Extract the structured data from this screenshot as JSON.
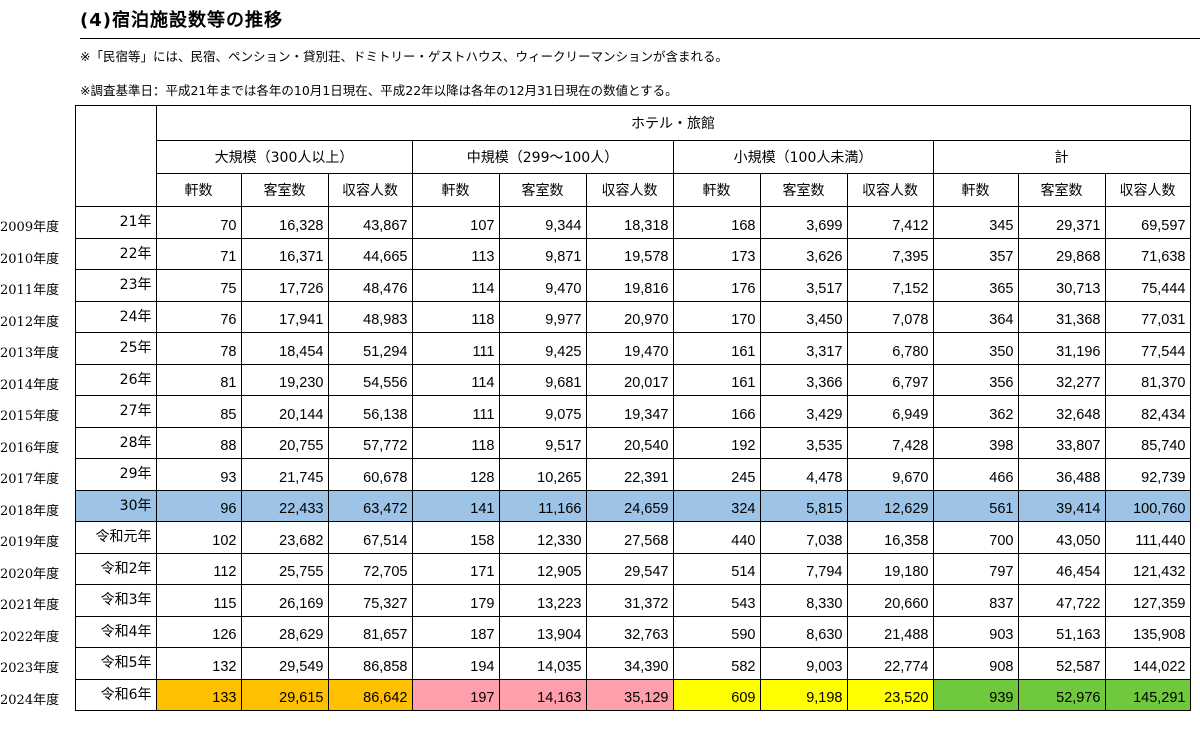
{
  "title": "(4)宿泊施設数等の推移",
  "notes": [
    "※「民宿等」には、民宿、ペンション・貸別荘、ドミトリー・ゲストハウス、ウィークリーマンションが含まれる。",
    "※調査基準日：平成21年までは各年の10月1日現在、平成22年以降は各年の12月31日現在の数値とする。"
  ],
  "header": {
    "group": "ホテル・旅館",
    "categories": [
      "大規模（300人以上）",
      "中規模（299～100人）",
      "小規模（100人未満）",
      "計"
    ],
    "columns": [
      "軒数",
      "客室数",
      "収容人数"
    ]
  },
  "highlight_colors": {
    "row_2018": "#9dc3e6",
    "latest_large": "#ffc000",
    "latest_medium": "#ff9fac",
    "latest_small": "#ffff00",
    "latest_total": "#70c83c"
  },
  "rows": [
    {
      "fiscal_year": "2009年度",
      "era": "21年",
      "values": [
        "70",
        "16,328",
        "43,867",
        "107",
        "9,344",
        "18,318",
        "168",
        "3,699",
        "7,412",
        "345",
        "29,371",
        "69,597"
      ]
    },
    {
      "fiscal_year": "2010年度",
      "era": "22年",
      "values": [
        "71",
        "16,371",
        "44,665",
        "113",
        "9,871",
        "19,578",
        "173",
        "3,626",
        "7,395",
        "357",
        "29,868",
        "71,638"
      ]
    },
    {
      "fiscal_year": "2011年度",
      "era": "23年",
      "values": [
        "75",
        "17,726",
        "48,476",
        "114",
        "9,470",
        "19,816",
        "176",
        "3,517",
        "7,152",
        "365",
        "30,713",
        "75,444"
      ]
    },
    {
      "fiscal_year": "2012年度",
      "era": "24年",
      "values": [
        "76",
        "17,941",
        "48,983",
        "118",
        "9,977",
        "20,970",
        "170",
        "3,450",
        "7,078",
        "364",
        "31,368",
        "77,031"
      ]
    },
    {
      "fiscal_year": "2013年度",
      "era": "25年",
      "values": [
        "78",
        "18,454",
        "51,294",
        "111",
        "9,425",
        "19,470",
        "161",
        "3,317",
        "6,780",
        "350",
        "31,196",
        "77,544"
      ]
    },
    {
      "fiscal_year": "2014年度",
      "era": "26年",
      "values": [
        "81",
        "19,230",
        "54,556",
        "114",
        "9,681",
        "20,017",
        "161",
        "3,366",
        "6,797",
        "356",
        "32,277",
        "81,370"
      ]
    },
    {
      "fiscal_year": "2015年度",
      "era": "27年",
      "values": [
        "85",
        "20,144",
        "56,138",
        "111",
        "9,075",
        "19,347",
        "166",
        "3,429",
        "6,949",
        "362",
        "32,648",
        "82,434"
      ]
    },
    {
      "fiscal_year": "2016年度",
      "era": "28年",
      "values": [
        "88",
        "20,755",
        "57,772",
        "118",
        "9,517",
        "20,540",
        "192",
        "3,535",
        "7,428",
        "398",
        "33,807",
        "85,740"
      ]
    },
    {
      "fiscal_year": "2017年度",
      "era": "29年",
      "values": [
        "93",
        "21,745",
        "60,678",
        "128",
        "10,265",
        "22,391",
        "245",
        "4,478",
        "9,670",
        "466",
        "36,488",
        "92,739"
      ]
    },
    {
      "fiscal_year": "2018年度",
      "era": "30年",
      "values": [
        "96",
        "22,433",
        "63,472",
        "141",
        "11,166",
        "24,659",
        "324",
        "5,815",
        "12,629",
        "561",
        "39,414",
        "100,760"
      ]
    },
    {
      "fiscal_year": "2019年度",
      "era": "令和元年",
      "values": [
        "102",
        "23,682",
        "67,514",
        "158",
        "12,330",
        "27,568",
        "440",
        "7,038",
        "16,358",
        "700",
        "43,050",
        "111,440"
      ]
    },
    {
      "fiscal_year": "2020年度",
      "era": "令和2年",
      "values": [
        "112",
        "25,755",
        "72,705",
        "171",
        "12,905",
        "29,547",
        "514",
        "7,794",
        "19,180",
        "797",
        "46,454",
        "121,432"
      ]
    },
    {
      "fiscal_year": "2021年度",
      "era": "令和3年",
      "values": [
        "115",
        "26,169",
        "75,327",
        "179",
        "13,223",
        "31,372",
        "543",
        "8,330",
        "20,660",
        "837",
        "47,722",
        "127,359"
      ]
    },
    {
      "fiscal_year": "2022年度",
      "era": "令和4年",
      "values": [
        "126",
        "28,629",
        "81,657",
        "187",
        "13,904",
        "32,763",
        "590",
        "8,630",
        "21,488",
        "903",
        "51,163",
        "135,908"
      ]
    },
    {
      "fiscal_year": "2023年度",
      "era": "令和5年",
      "values": [
        "132",
        "29,549",
        "86,858",
        "194",
        "14,035",
        "34,390",
        "582",
        "9,003",
        "22,774",
        "908",
        "52,587",
        "144,022"
      ]
    },
    {
      "fiscal_year": "2024年度",
      "era": "令和6年",
      "values": [
        "133",
        "29,615",
        "86,642",
        "197",
        "14,163",
        "35,129",
        "609",
        "9,198",
        "23,520",
        "939",
        "52,976",
        "145,291"
      ]
    }
  ]
}
